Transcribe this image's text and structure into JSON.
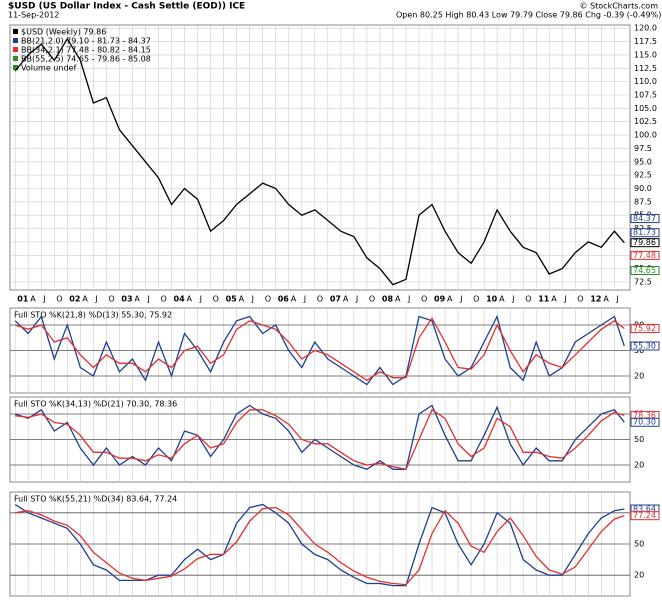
{
  "chart_data": [
    {
      "type": "line",
      "title": "$USD (US Dollar Index - Cash Settle (EOD)) ICE",
      "subtitle": "11-Sep-2012",
      "quote": "Open 80.25  High 80.43  Low 79.79  Close 79.86  Chg -0.39 (-0.49%)",
      "source": "© StockCharts.com",
      "legend": [
        {
          "label": "$USD (Weekly) 79.86",
          "color": "#000000"
        },
        {
          "label": "BB(21,2.0) 79.10 - 81.73 - 84.37",
          "color": "#1f3f8f"
        },
        {
          "label": "BB(34,2.1) 77.48 - 80.82 - 84.15",
          "color": "#e03030"
        },
        {
          "label": "BB(55,2.5) 74.65 - 79.86 - 85.08",
          "color": "#2e8b2e"
        },
        {
          "label": "Volume undef",
          "color": "#2e8b2e"
        }
      ],
      "x": [
        2001,
        2001.25,
        2001.5,
        2001.75,
        2002,
        2002.25,
        2002.5,
        2002.75,
        2003,
        2003.25,
        2003.5,
        2003.75,
        2004,
        2004.25,
        2004.5,
        2004.75,
        2005,
        2005.25,
        2005.5,
        2005.75,
        2006,
        2006.25,
        2006.5,
        2006.75,
        2007,
        2007.25,
        2007.5,
        2007.75,
        2008,
        2008.25,
        2008.5,
        2008.75,
        2009,
        2009.25,
        2009.5,
        2009.75,
        2010,
        2010.25,
        2010.5,
        2010.75,
        2011,
        2011.25,
        2011.5,
        2011.75,
        2012,
        2012.25,
        2012.5,
        2012.69
      ],
      "series": [
        {
          "name": "$USD",
          "color": "#000000",
          "values": [
            112,
            115,
            117,
            114,
            118,
            114,
            106,
            107,
            101,
            98,
            95,
            92,
            87,
            90,
            88,
            82,
            84,
            87,
            89,
            91,
            90,
            87,
            85,
            86,
            84,
            82,
            81,
            77,
            75,
            72,
            73,
            85,
            87,
            82,
            78,
            76,
            80,
            86,
            82,
            79,
            78,
            74,
            75,
            78,
            80,
            79,
            82,
            79.86
          ]
        }
      ],
      "markers": [
        {
          "value": 84.37,
          "label": "84.37",
          "color": "#1f3f8f"
        },
        {
          "value": 81.73,
          "label": "81.73",
          "color": "#1f3f8f"
        },
        {
          "value": 79.86,
          "label": "79.86",
          "color": "#000000"
        },
        {
          "value": 77.48,
          "label": "77.48",
          "color": "#e03030"
        },
        {
          "value": 74.65,
          "label": "74.65",
          "color": "#2e8b2e"
        }
      ],
      "xlim": [
        2000.9,
        2012.8
      ],
      "ylim": [
        71,
        120.6
      ],
      "yticks": [
        72.5,
        {
          "value": 75,
          "label": "75.0"
        },
        77.5,
        {
          "value": 80,
          "label": "80.0"
        },
        82.5,
        {
          "value": 85,
          "label": "85.0"
        },
        87.5,
        {
          "value": 90,
          "label": "90.0"
        },
        92.5,
        {
          "value": 95,
          "label": "95.0"
        },
        97.5,
        {
          "value": 100,
          "label": "100.0"
        },
        102.5,
        {
          "value": 105,
          "label": "105.0"
        },
        107.5,
        {
          "value": 110,
          "label": "110.0"
        },
        112.5,
        {
          "value": 115,
          "label": "115.0"
        },
        117.5,
        {
          "value": 120,
          "label": "120.0"
        }
      ],
      "xticks": [
        {
          "value": 2001,
          "label": "01"
        },
        {
          "value": 2001.25,
          "label": "A"
        },
        {
          "value": 2001.5,
          "label": "J"
        },
        {
          "value": 2001.75,
          "label": "O"
        },
        {
          "value": 2002,
          "label": "02"
        },
        {
          "value": 2002.25,
          "label": "A"
        },
        {
          "value": 2002.5,
          "label": "J"
        },
        {
          "value": 2002.75,
          "label": "O"
        },
        {
          "value": 2003,
          "label": "03"
        },
        {
          "value": 2003.25,
          "label": "A"
        },
        {
          "value": 2003.5,
          "label": "J"
        },
        {
          "value": 2003.75,
          "label": "O"
        },
        {
          "value": 2004,
          "label": "04"
        },
        {
          "value": 2004.25,
          "label": "A"
        },
        {
          "value": 2004.5,
          "label": "J"
        },
        {
          "value": 2004.75,
          "label": "O"
        },
        {
          "value": 2005,
          "label": "05"
        },
        {
          "value": 2005.25,
          "label": "A"
        },
        {
          "value": 2005.5,
          "label": "J"
        },
        {
          "value": 2005.75,
          "label": "O"
        },
        {
          "value": 2006,
          "label": "06"
        },
        {
          "value": 2006.25,
          "label": "A"
        },
        {
          "value": 2006.5,
          "label": "J"
        },
        {
          "value": 2006.75,
          "label": "O"
        },
        {
          "value": 2007,
          "label": "07"
        },
        {
          "value": 2007.25,
          "label": "A"
        },
        {
          "value": 2007.5,
          "label": "J"
        },
        {
          "value": 2007.75,
          "label": "O"
        },
        {
          "value": 2008,
          "label": "08"
        },
        {
          "value": 2008.25,
          "label": "A"
        },
        {
          "value": 2008.5,
          "label": "J"
        },
        {
          "value": 2008.75,
          "label": "O"
        },
        {
          "value": 2009,
          "label": "09"
        },
        {
          "value": 2009.25,
          "label": "A"
        },
        {
          "value": 2009.5,
          "label": "J"
        },
        {
          "value": 2009.75,
          "label": "O"
        },
        {
          "value": 2010,
          "label": "10"
        },
        {
          "value": 2010.25,
          "label": "A"
        },
        {
          "value": 2010.5,
          "label": "J"
        },
        {
          "value": 2010.75,
          "label": "O"
        },
        {
          "value": 2011,
          "label": "11"
        },
        {
          "value": 2011.25,
          "label": "A"
        },
        {
          "value": 2011.5,
          "label": "J"
        },
        {
          "value": 2011.75,
          "label": "O"
        },
        {
          "value": 2012,
          "label": "12"
        },
        {
          "value": 2012.25,
          "label": "A"
        },
        {
          "value": 2012.5,
          "label": "J"
        }
      ],
      "grid": true
    },
    {
      "type": "line",
      "title": "Full STO %K(21,8) %D(13) 55.30, 75.92",
      "xlim": [
        2000.9,
        2012.8
      ],
      "ylim": [
        0,
        100
      ],
      "yticks": [
        20,
        50,
        80
      ],
      "x": [
        2001,
        2001.25,
        2001.5,
        2001.75,
        2002,
        2002.25,
        2002.5,
        2002.75,
        2003,
        2003.25,
        2003.5,
        2003.75,
        2004,
        2004.25,
        2004.5,
        2004.75,
        2005,
        2005.25,
        2005.5,
        2005.75,
        2006,
        2006.25,
        2006.5,
        2006.75,
        2007,
        2007.25,
        2007.5,
        2007.75,
        2008,
        2008.25,
        2008.5,
        2008.75,
        2009,
        2009.25,
        2009.5,
        2009.75,
        2010,
        2010.25,
        2010.5,
        2010.75,
        2011,
        2011.25,
        2011.5,
        2011.75,
        2012,
        2012.25,
        2012.5,
        2012.69
      ],
      "series": [
        {
          "name": "%K",
          "color": "#1f3f8f",
          "values": [
            85,
            70,
            90,
            40,
            80,
            30,
            20,
            60,
            25,
            40,
            15,
            60,
            20,
            70,
            50,
            25,
            60,
            85,
            90,
            70,
            80,
            50,
            30,
            60,
            40,
            30,
            20,
            10,
            30,
            10,
            20,
            90,
            85,
            40,
            20,
            30,
            60,
            90,
            30,
            15,
            60,
            20,
            30,
            60,
            70,
            80,
            90,
            55.3
          ]
        },
        {
          "name": "%D",
          "color": "#e03030",
          "values": [
            80,
            75,
            80,
            60,
            65,
            45,
            30,
            45,
            35,
            35,
            25,
            40,
            30,
            50,
            55,
            35,
            45,
            75,
            85,
            80,
            75,
            60,
            40,
            50,
            45,
            35,
            25,
            15,
            25,
            18,
            18,
            65,
            88,
            60,
            30,
            28,
            45,
            80,
            50,
            25,
            45,
            35,
            30,
            45,
            60,
            75,
            85,
            75.92
          ]
        }
      ],
      "markers": [
        {
          "value": 75.92,
          "label": "75.92",
          "color": "#e03030"
        },
        {
          "value": 55.3,
          "label": "55.30",
          "color": "#1f3f8f"
        }
      ],
      "grid": true
    },
    {
      "type": "line",
      "title": "Full STO %K(34,13) %D(21) 70.30, 78.36",
      "xlim": [
        2000.9,
        2012.8
      ],
      "ylim": [
        0,
        100
      ],
      "yticks": [
        20,
        50,
        80
      ],
      "x": [
        2001,
        2001.25,
        2001.5,
        2001.75,
        2002,
        2002.25,
        2002.5,
        2002.75,
        2003,
        2003.25,
        2003.5,
        2003.75,
        2004,
        2004.25,
        2004.5,
        2004.75,
        2005,
        2005.25,
        2005.5,
        2005.75,
        2006,
        2006.25,
        2006.5,
        2006.75,
        2007,
        2007.25,
        2007.5,
        2007.75,
        2008,
        2008.25,
        2008.5,
        2008.75,
        2009,
        2009.25,
        2009.5,
        2009.75,
        2010,
        2010.25,
        2010.5,
        2010.75,
        2011,
        2011.25,
        2011.5,
        2011.75,
        2012,
        2012.25,
        2012.5,
        2012.69
      ],
      "series": [
        {
          "name": "%K",
          "color": "#1f3f8f",
          "values": [
            80,
            75,
            85,
            60,
            70,
            40,
            20,
            40,
            20,
            30,
            20,
            40,
            25,
            60,
            55,
            30,
            50,
            80,
            90,
            80,
            75,
            60,
            35,
            50,
            40,
            30,
            20,
            15,
            25,
            15,
            15,
            80,
            90,
            55,
            25,
            25,
            55,
            88,
            45,
            20,
            40,
            25,
            25,
            50,
            65,
            80,
            85,
            70.3
          ]
        },
        {
          "name": "%D",
          "color": "#e03030",
          "values": [
            78,
            76,
            80,
            70,
            68,
            55,
            35,
            35,
            28,
            28,
            25,
            32,
            28,
            45,
            55,
            40,
            45,
            70,
            85,
            85,
            78,
            68,
            50,
            45,
            45,
            35,
            25,
            20,
            22,
            18,
            15,
            50,
            85,
            75,
            45,
            30,
            40,
            75,
            65,
            35,
            35,
            30,
            28,
            40,
            55,
            72,
            82,
            78.36
          ]
        }
      ],
      "markers": [
        {
          "value": 78.36,
          "label": "78.36",
          "color": "#e03030"
        },
        {
          "value": 70.3,
          "label": "70.30",
          "color": "#1f3f8f"
        }
      ],
      "grid": true
    },
    {
      "type": "line",
      "title": "Full STO %K(55,21) %D(34) 83.64, 77.24",
      "xlim": [
        2000.9,
        2012.8
      ],
      "ylim": [
        0,
        100
      ],
      "yticks": [
        20,
        50,
        80
      ],
      "x": [
        2001,
        2001.25,
        2001.5,
        2001.75,
        2002,
        2002.25,
        2002.5,
        2002.75,
        2003,
        2003.25,
        2003.5,
        2003.75,
        2004,
        2004.25,
        2004.5,
        2004.75,
        2005,
        2005.25,
        2005.5,
        2005.75,
        2006,
        2006.25,
        2006.5,
        2006.75,
        2007,
        2007.25,
        2007.5,
        2007.75,
        2008,
        2008.25,
        2008.5,
        2008.75,
        2009,
        2009.25,
        2009.5,
        2009.75,
        2010,
        2010.25,
        2010.5,
        2010.75,
        2011,
        2011.25,
        2011.5,
        2011.75,
        2012,
        2012.25,
        2012.5,
        2012.69
      ],
      "series": [
        {
          "name": "%K",
          "color": "#1f3f8f",
          "values": [
            88,
            80,
            75,
            70,
            65,
            50,
            30,
            25,
            15,
            15,
            15,
            20,
            20,
            35,
            45,
            35,
            40,
            70,
            85,
            88,
            80,
            70,
            50,
            40,
            35,
            25,
            18,
            12,
            12,
            10,
            10,
            50,
            85,
            80,
            50,
            30,
            50,
            80,
            70,
            35,
            25,
            20,
            20,
            40,
            60,
            75,
            82,
            83.64
          ]
        },
        {
          "name": "%D",
          "color": "#e03030",
          "values": [
            80,
            82,
            78,
            72,
            68,
            58,
            42,
            32,
            22,
            17,
            15,
            17,
            19,
            26,
            36,
            40,
            40,
            52,
            72,
            84,
            85,
            78,
            64,
            50,
            42,
            32,
            24,
            18,
            14,
            12,
            11,
            25,
            60,
            82,
            70,
            48,
            42,
            62,
            75,
            58,
            38,
            25,
            21,
            28,
            45,
            62,
            74,
            77.24
          ]
        }
      ],
      "markers": [
        {
          "value": 83.64,
          "label": "83.64",
          "color": "#1f3f8f"
        },
        {
          "value": 77.24,
          "label": "77.24",
          "color": "#e03030"
        }
      ],
      "grid": true
    }
  ]
}
